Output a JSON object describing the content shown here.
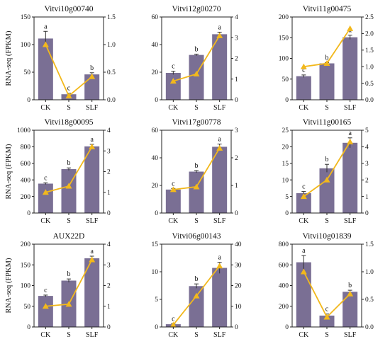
{
  "chart_data": [
    {
      "type": "bar",
      "title": "Vitvi10g00740",
      "categories": [
        "CK",
        "S",
        "SLF"
      ],
      "values": [
        111,
        10,
        46
      ],
      "errors": [
        13,
        2,
        3
      ],
      "labels": [
        "a",
        "c",
        "b"
      ],
      "ylabel": "RNA-seq (FPKM)",
      "ylim": [
        0,
        150
      ],
      "yticks": [
        "0",
        "50",
        "100",
        "150"
      ],
      "y2lim": [
        0,
        1.5
      ],
      "y2ticks": [
        "0.0",
        "0.5",
        "1.0",
        "1.5"
      ],
      "line_values": [
        1.0,
        0.07,
        0.42
      ]
    },
    {
      "type": "bar",
      "title": "Vitvi12g00270",
      "categories": [
        "CK",
        "S",
        "SLF"
      ],
      "values": [
        19.5,
        32.5,
        47.5
      ],
      "errors": [
        1.2,
        0.6,
        1.5
      ],
      "labels": [
        "c",
        "b",
        "a"
      ],
      "ylabel": "",
      "ylim": [
        0,
        60
      ],
      "yticks": [
        "0",
        "20",
        "40",
        "60"
      ],
      "y2lim": [
        0,
        4
      ],
      "y2ticks": [
        "0",
        "1",
        "2",
        "3",
        "4"
      ],
      "line_values": [
        0.9,
        1.25,
        3.1
      ]
    },
    {
      "type": "bar",
      "title": "Vitvi11g00475",
      "categories": [
        "CK",
        "S",
        "SLF"
      ],
      "values": [
        57,
        88,
        151
      ],
      "errors": [
        3,
        2,
        5
      ],
      "labels": [
        "c",
        "b",
        "a"
      ],
      "ylabel": "",
      "ylim": [
        0,
        200
      ],
      "yticks": [
        "0",
        "50",
        "100",
        "150",
        "200"
      ],
      "y2lim": [
        0,
        2.5
      ],
      "y2ticks": [
        "0.0",
        "0.5",
        "1.0",
        "1.5",
        "2.0",
        "2.5"
      ],
      "line_values": [
        1.0,
        1.1,
        2.15
      ]
    },
    {
      "type": "bar",
      "title": "Vitvi18g00095",
      "categories": [
        "CK",
        "S",
        "SLF"
      ],
      "values": [
        355,
        530,
        805
      ],
      "errors": [
        10,
        15,
        25
      ],
      "labels": [
        "c",
        "b",
        "a"
      ],
      "ylabel": "RNA-seq (FPKM)",
      "ylim": [
        0,
        1000
      ],
      "yticks": [
        "0",
        "200",
        "400",
        "600",
        "800",
        "1000"
      ],
      "y2lim": [
        0,
        4
      ],
      "y2ticks": [
        "0",
        "1",
        "2",
        "3",
        "4"
      ],
      "line_values": [
        1.0,
        1.3,
        3.2
      ]
    },
    {
      "type": "bar",
      "title": "Vitvi17g00778",
      "categories": [
        "CK",
        "S",
        "SLF"
      ],
      "values": [
        17,
        30,
        48
      ],
      "errors": [
        0.8,
        0.8,
        2
      ],
      "labels": [
        "c",
        "b",
        "a"
      ],
      "ylabel": "",
      "ylim": [
        0,
        60
      ],
      "yticks": [
        "0",
        "20",
        "40",
        "60"
      ],
      "y2lim": [
        0,
        3
      ],
      "y2ticks": [
        "0",
        "1",
        "2",
        "3"
      ],
      "line_values": [
        0.85,
        0.95,
        2.35
      ]
    },
    {
      "type": "bar",
      "title": "Vitvi11g00165",
      "categories": [
        "CK",
        "S",
        "SLF"
      ],
      "values": [
        6,
        13.5,
        21.2
      ],
      "errors": [
        0.5,
        1.2,
        1.5
      ],
      "labels": [
        "c",
        "b",
        "a"
      ],
      "ylabel": "",
      "ylim": [
        0,
        25
      ],
      "yticks": [
        "0",
        "5",
        "10",
        "15",
        "20",
        "25"
      ],
      "y2lim": [
        0,
        5
      ],
      "y2ticks": [
        "0",
        "1",
        "2",
        "3",
        "4",
        "5"
      ],
      "line_values": [
        1.0,
        2.0,
        4.3
      ]
    },
    {
      "type": "bar",
      "title": "AUX22D",
      "categories": [
        "CK",
        "S",
        "SLF"
      ],
      "values": [
        75,
        112,
        166
      ],
      "errors": [
        2,
        4,
        5
      ],
      "labels": [
        "c",
        "b",
        "a"
      ],
      "ylabel": "RNA-seq (FPKM)",
      "ylim": [
        0,
        200
      ],
      "yticks": [
        "0",
        "50",
        "100",
        "150",
        "200"
      ],
      "y2lim": [
        0,
        4
      ],
      "y2ticks": [
        "0",
        "1",
        "2",
        "3",
        "4"
      ],
      "line_values": [
        1.0,
        1.1,
        3.25
      ]
    },
    {
      "type": "bar",
      "title": "Vitvi06g00143",
      "categories": [
        "CK",
        "S",
        "SLF"
      ],
      "values": [
        0.5,
        7.4,
        10.7
      ],
      "errors": [
        0.1,
        0.4,
        1.0
      ],
      "labels": [
        "c",
        "b",
        "a"
      ],
      "ylabel": "",
      "ylim": [
        0,
        15
      ],
      "yticks": [
        "0",
        "5",
        "10",
        "15"
      ],
      "y2lim": [
        0,
        40
      ],
      "y2ticks": [
        "0",
        "10",
        "20",
        "30",
        "40"
      ],
      "line_values": [
        1.0,
        15,
        29.5
      ]
    },
    {
      "type": "bar",
      "title": "Vitvi10g01839",
      "categories": [
        "CK",
        "S",
        "SLF"
      ],
      "values": [
        625,
        110,
        340
      ],
      "errors": [
        65,
        15,
        15
      ],
      "labels": [
        "a",
        "c",
        "b"
      ],
      "ylabel": "",
      "ylim": [
        0,
        800
      ],
      "yticks": [
        "0",
        "200",
        "400",
        "600",
        "800"
      ],
      "y2lim": [
        0,
        1.5
      ],
      "y2ticks": [
        "0.0",
        "0.5",
        "1.0",
        "1.5"
      ],
      "line_values": [
        1.0,
        0.18,
        0.6
      ]
    }
  ],
  "colors": {
    "bar": "#7a6f94",
    "line": "#f2b81c",
    "axis": "#222222"
  }
}
